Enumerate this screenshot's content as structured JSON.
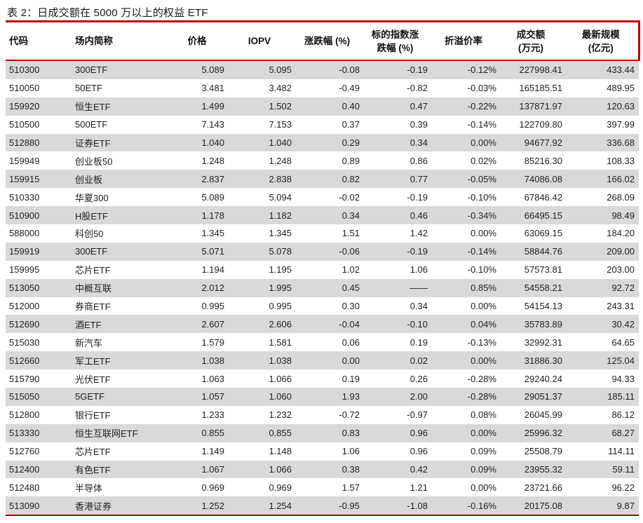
{
  "title": "表 2：日成交额在 5000 万以上的权益 ETF",
  "colors": {
    "rule_red": "#C00000",
    "bottom_rule_red": "#A00000",
    "row_alt_gray": "#D9D9D9",
    "text": "#1F1F1F"
  },
  "chart_data": {
    "type": "table",
    "title": "表 2：日成交额在 5000 万以上的权益 ETF",
    "columns": [
      "代码",
      "场内简称",
      "价格",
      "IOPV",
      "涨跌幅 (%)",
      "标的指数涨跌幅 (%)",
      "折溢价率",
      "成交额(万元)",
      "最新规模(亿元)"
    ]
  },
  "table": {
    "columns": [
      "代码",
      "场内简称",
      "价格",
      "IOPV",
      "涨跌幅 (%)",
      "标的指数涨\n跌幅 (%)",
      "折溢价率",
      "成交额\n(万元)",
      "最新规模\n(亿元)"
    ],
    "rows": [
      [
        "510300",
        "300ETF",
        "5.089",
        "5.095",
        "-0.08",
        "-0.19",
        "-0.12%",
        "227998.41",
        "433.44"
      ],
      [
        "510050",
        "50ETF",
        "3.481",
        "3.482",
        "-0.49",
        "-0.82",
        "-0.03%",
        "165185.51",
        "489.95"
      ],
      [
        "159920",
        "恒生ETF",
        "1.499",
        "1.502",
        "0.40",
        "0.47",
        "-0.22%",
        "137871.97",
        "120.63"
      ],
      [
        "510500",
        "500ETF",
        "7.143",
        "7.153",
        "0.37",
        "0.39",
        "-0.14%",
        "122709.80",
        "397.99"
      ],
      [
        "512880",
        "证券ETF",
        "1.040",
        "1.040",
        "0.29",
        "0.34",
        "0.00%",
        "94677.92",
        "336.68"
      ],
      [
        "159949",
        "创业板50",
        "1.248",
        "1.248",
        "0.89",
        "0.86",
        "0.02%",
        "85216.30",
        "108.33"
      ],
      [
        "159915",
        "创业板",
        "2.837",
        "2.838",
        "0.82",
        "0.77",
        "-0.05%",
        "74086.08",
        "166.02"
      ],
      [
        "510330",
        "华夏300",
        "5.089",
        "5.094",
        "-0.02",
        "-0.19",
        "-0.10%",
        "67846.42",
        "268.09"
      ],
      [
        "510900",
        "H股ETF",
        "1.178",
        "1.182",
        "0.34",
        "0.46",
        "-0.34%",
        "66495.15",
        "98.49"
      ],
      [
        "588000",
        "科创50",
        "1.345",
        "1.345",
        "1.51",
        "1.42",
        "0.00%",
        "63069.15",
        "184.20"
      ],
      [
        "159919",
        "300ETF",
        "5.071",
        "5.078",
        "-0.06",
        "-0.19",
        "-0.14%",
        "58844.76",
        "209.00"
      ],
      [
        "159995",
        "芯片ETF",
        "1.194",
        "1.195",
        "1.02",
        "1.06",
        "-0.10%",
        "57573.81",
        "203.00"
      ],
      [
        "513050",
        "中概互联",
        "2.012",
        "1.995",
        "0.45",
        "——",
        "0.85%",
        "54558.21",
        "92.72"
      ],
      [
        "512000",
        "券商ETF",
        "0.995",
        "0.995",
        "0.30",
        "0.34",
        "0.00%",
        "54154.13",
        "243.31"
      ],
      [
        "512690",
        "酒ETF",
        "2.607",
        "2.606",
        "-0.04",
        "-0.10",
        "0.04%",
        "35783.89",
        "30.42"
      ],
      [
        "515030",
        "新汽车",
        "1.579",
        "1.581",
        "0.06",
        "0.19",
        "-0.13%",
        "32992.31",
        "64.65"
      ],
      [
        "512660",
        "军工ETF",
        "1.038",
        "1.038",
        "0.00",
        "0.02",
        "0.00%",
        "31886.30",
        "125.04"
      ],
      [
        "515790",
        "光伏ETF",
        "1.063",
        "1.066",
        "0.19",
        "0.26",
        "-0.28%",
        "29240.24",
        "94.33"
      ],
      [
        "515050",
        "5GETF",
        "1.057",
        "1.060",
        "1.93",
        "2.00",
        "-0.28%",
        "29051.37",
        "185.11"
      ],
      [
        "512800",
        "银行ETF",
        "1.233",
        "1.232",
        "-0.72",
        "-0.97",
        "0.08%",
        "26045.99",
        "86.12"
      ],
      [
        "513330",
        "恒生互联网ETF",
        "0.855",
        "0.855",
        "0.83",
        "0.96",
        "0.00%",
        "25996.32",
        "68.27"
      ],
      [
        "512760",
        "芯片ETF",
        "1.149",
        "1.148",
        "1.06",
        "0.96",
        "0.09%",
        "25508.79",
        "114.11"
      ],
      [
        "512400",
        "有色ETF",
        "1.067",
        "1.066",
        "0.38",
        "0.42",
        "0.09%",
        "23955.32",
        "59.11"
      ],
      [
        "512480",
        "半导体",
        "0.969",
        "0.969",
        "1.57",
        "1.21",
        "0.00%",
        "23721.66",
        "96.22"
      ],
      [
        "513090",
        "香港证券",
        "1.252",
        "1.254",
        "-0.95",
        "-1.08",
        "-0.16%",
        "20175.08",
        "9.87"
      ]
    ]
  }
}
